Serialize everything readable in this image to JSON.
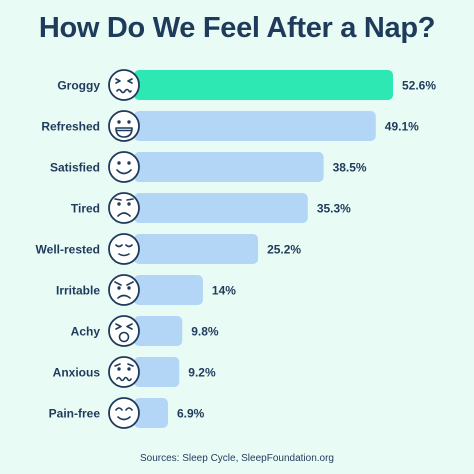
{
  "chart_data": {
    "type": "bar",
    "orientation": "horizontal",
    "title": "How Do We Feel After a Nap?",
    "categories": [
      "Groggy",
      "Refreshed",
      "Satisfied",
      "Tired",
      "Well-rested",
      "Irritable",
      "Achy",
      "Anxious",
      "Pain-free"
    ],
    "values": [
      52.6,
      49.1,
      38.5,
      35.3,
      25.2,
      14,
      9.8,
      9.2,
      6.9
    ],
    "value_labels": [
      "52.6%",
      "49.1%",
      "38.5%",
      "35.3%",
      "25.2%",
      "14%",
      "9.8%",
      "9.2%",
      "6.9%"
    ],
    "icons": [
      "groggy-face-icon",
      "grinning-face-icon",
      "smiling-face-icon",
      "sad-face-icon",
      "relieved-face-icon",
      "angry-face-icon",
      "pained-face-icon",
      "worried-face-icon",
      "content-face-icon"
    ],
    "xlim": [
      0,
      52.6
    ],
    "grid": false,
    "legend": "none",
    "colors": {
      "highlight": "#2ee8b4",
      "bar": "#b3d6f7",
      "text": "#1f3b5c",
      "background": "#e9fbf5"
    },
    "source": "Sources: Sleep Cycle, SleepFoundation.org"
  }
}
